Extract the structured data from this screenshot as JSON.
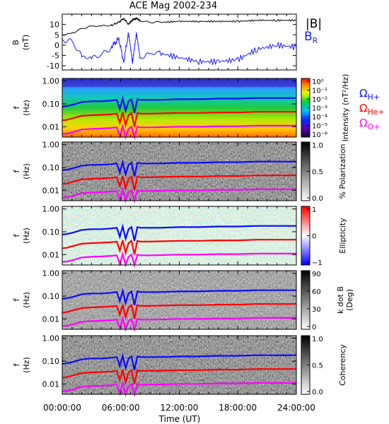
{
  "title": "ACE Mag 2002-234",
  "colors": {
    "bmag": "#000000",
    "br": "#1a1aff",
    "h": "#0a0aff",
    "he": "#ff0000",
    "o": "#ff00ff"
  },
  "legend_top": {
    "bmag": "|B|",
    "br_main": "B",
    "br_sub": "R"
  },
  "legend_cyclotron": {
    "h_main": "Ω",
    "h_sub": "H+",
    "he_main": "Ω",
    "he_sub": "He+",
    "o_main": "Ω",
    "o_sub": "O+"
  },
  "chart_data": [
    {
      "type": "line",
      "panel": "B field",
      "ylabel_main": "B",
      "ylabel_unit": "(nT)",
      "ylim": [
        -12,
        15
      ],
      "yticks": [
        "10",
        "5",
        "0",
        "-5",
        "-10"
      ],
      "x_hours": [
        0,
        1,
        2,
        3,
        4,
        5,
        5.8,
        6.3,
        6.8,
        7.2,
        7.6,
        8.0,
        9,
        10,
        12,
        14,
        16,
        18,
        20,
        22,
        24
      ],
      "series": [
        {
          "name": "|B|",
          "values": [
            5,
            6,
            8,
            9,
            9,
            9.5,
            11,
            13,
            10,
            12,
            13,
            12,
            11,
            11,
            11.5,
            11.5,
            11.5,
            11.5,
            12,
            12,
            12
          ]
        },
        {
          "name": "BR",
          "values": [
            3,
            2,
            -6,
            -7,
            -5,
            -1,
            3,
            -8,
            6,
            -9,
            5,
            -6,
            -5,
            -4,
            -6,
            -8,
            -8,
            -7,
            -2,
            0,
            -1
          ]
        }
      ]
    },
    {
      "type": "heatmap",
      "panel": "Intensity",
      "ylabel_main": "f",
      "ylabel_unit": "(Hz)",
      "yticks": [
        "1.00",
        "0.10",
        "0.01"
      ],
      "colorbar_label": "Intensity (nT²/Hz)",
      "colorbar_ticks": [
        "10⁰",
        "10⁻¹",
        "10⁻²",
        "10⁻³",
        "10⁻⁴",
        "10⁻⁵",
        "10⁻⁶"
      ],
      "cyclotron_lines": true
    },
    {
      "type": "heatmap",
      "panel": "% Polarization",
      "ylabel_main": "f",
      "ylabel_unit": "(Hz)",
      "yticks": [
        "1.00",
        "0.10",
        "0.01"
      ],
      "colorbar_label": "% Polarization",
      "colorbar_ticks": [
        "1.0",
        "0.5",
        "0.0"
      ],
      "cyclotron_lines": true
    },
    {
      "type": "heatmap",
      "panel": "Ellipticity",
      "ylabel_main": "f",
      "ylabel_unit": "(Hz)",
      "yticks": [
        "1.00",
        "0.10",
        "0.01"
      ],
      "colorbar_label": "Ellipticity",
      "colorbar_ticks": [
        "1",
        "0",
        "−1"
      ],
      "cyclotron_lines": true
    },
    {
      "type": "heatmap",
      "panel": "k dot B",
      "ylabel_main": "f",
      "ylabel_unit": "(Hz)",
      "yticks": [
        "1.00",
        "0.10",
        "0.01"
      ],
      "colorbar_label_1": "k dot B",
      "colorbar_label_2": "(Deg)",
      "colorbar_ticks": [
        "90",
        "60",
        "30",
        "0"
      ],
      "cyclotron_lines": true
    },
    {
      "type": "heatmap",
      "panel": "Coherency",
      "ylabel_main": "f",
      "ylabel_unit": "(Hz)",
      "yticks": [
        "1.00",
        "0.10",
        "0.01"
      ],
      "colorbar_label": "Coherency",
      "colorbar_ticks": [
        "1.0",
        "0.5",
        "0.0"
      ],
      "cyclotron_lines": true
    }
  ],
  "cyclotron": {
    "x_hours": [
      0,
      0.5,
      1,
      2,
      3,
      4,
      5,
      5.6,
      5.9,
      6.2,
      6.5,
      6.8,
      7.1,
      7.4,
      7.7,
      8.0,
      8.5,
      9,
      10,
      12,
      14,
      16,
      18,
      20,
      22,
      24
    ],
    "h_hz": [
      0.075,
      0.08,
      0.09,
      0.12,
      0.13,
      0.13,
      0.14,
      0.15,
      0.06,
      0.17,
      0.05,
      0.13,
      0.16,
      0.04,
      0.16,
      0.15,
      0.15,
      0.15,
      0.15,
      0.16,
      0.16,
      0.17,
      0.17,
      0.18,
      0.18,
      0.18
    ],
    "he_hz": [
      0.019,
      0.02,
      0.023,
      0.03,
      0.032,
      0.033,
      0.035,
      0.037,
      0.015,
      0.042,
      0.012,
      0.032,
      0.04,
      0.01,
      0.04,
      0.037,
      0.037,
      0.037,
      0.038,
      0.04,
      0.04,
      0.042,
      0.042,
      0.045,
      0.045,
      0.045
    ],
    "o_hz": [
      0.0048,
      0.005,
      0.0056,
      0.0075,
      0.008,
      0.0083,
      0.0088,
      0.0093,
      0.0038,
      0.0105,
      0.003,
      0.008,
      0.01,
      0.0026,
      0.01,
      0.0093,
      0.0093,
      0.0093,
      0.0095,
      0.01,
      0.01,
      0.0105,
      0.0105,
      0.011,
      0.011,
      0.011
    ]
  },
  "xaxis": {
    "ticks": [
      "00:00:00",
      "06:00:00",
      "12:00:00",
      "18:00:00",
      "24:00:00"
    ],
    "label": "Time (UT)"
  }
}
